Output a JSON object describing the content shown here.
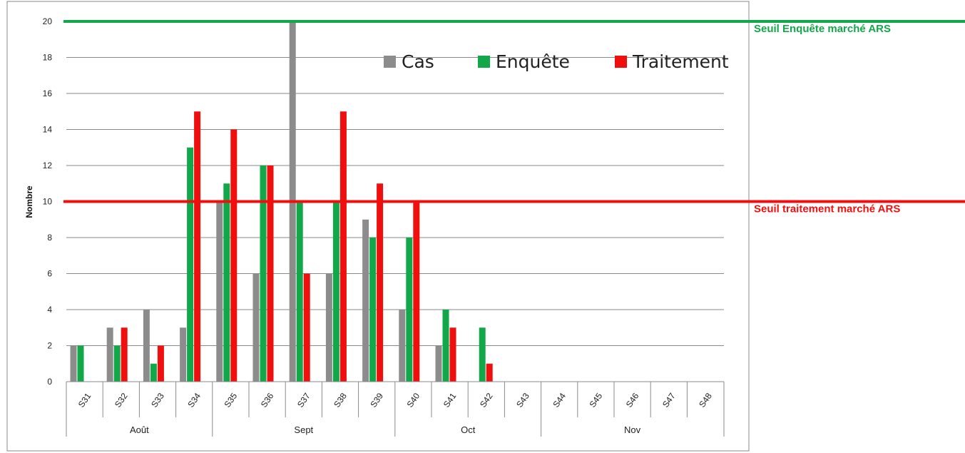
{
  "chart_data": {
    "type": "bar",
    "ylabel": "Nombre",
    "ylim": [
      0,
      20
    ],
    "yticks": [
      0,
      2,
      4,
      6,
      8,
      10,
      12,
      14,
      16,
      18,
      20
    ],
    "grid": true,
    "legend_position": "top-right",
    "categories": [
      "S31",
      "S32",
      "S33",
      "S34",
      "S35",
      "S36",
      "S37",
      "S38",
      "S39",
      "S40",
      "S41",
      "S42",
      "S43",
      "S44",
      "S45",
      "S46",
      "S47",
      "S48"
    ],
    "groups": [
      {
        "label": "Août",
        "from": "S31",
        "to": "S34"
      },
      {
        "label": "Sept",
        "from": "S35",
        "to": "S39"
      },
      {
        "label": "Oct",
        "from": "S40",
        "to": "S43"
      },
      {
        "label": "Nov",
        "from": "S44",
        "to": "S48"
      }
    ],
    "series": [
      {
        "name": "Cas",
        "color": "#8c8c8c",
        "values": [
          2,
          3,
          4,
          3,
          10,
          6,
          20,
          6,
          9,
          4,
          2,
          0,
          0,
          0,
          0,
          0,
          0,
          0
        ]
      },
      {
        "name": "Enquête",
        "color": "#12a84a",
        "values": [
          2,
          2,
          1,
          13,
          11,
          12,
          10,
          10,
          8,
          8,
          4,
          3,
          0,
          0,
          0,
          0,
          0,
          0
        ]
      },
      {
        "name": "Traitement",
        "color": "#f00f0f",
        "values": [
          0,
          3,
          2,
          15,
          14,
          12,
          6,
          15,
          11,
          10,
          3,
          1,
          0,
          0,
          0,
          0,
          0,
          0
        ]
      }
    ],
    "thresholds": [
      {
        "label": "Seuil  Enquête marché ARS",
        "value": 20,
        "color": "#12a84a"
      },
      {
        "label": "Seuil  traitement marché ARS",
        "value": 10,
        "color": "#f00f0f"
      }
    ]
  }
}
